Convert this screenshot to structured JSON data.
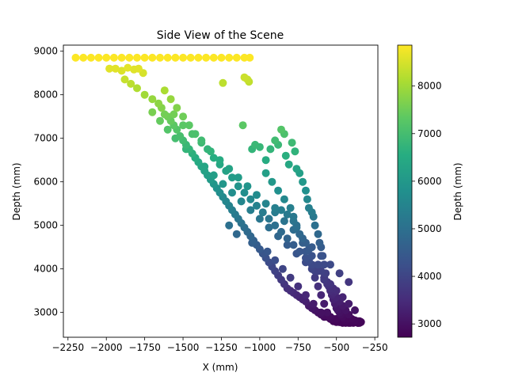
{
  "chart_data": {
    "type": "scatter",
    "title": "Side View of the Scene",
    "xlabel": "X (mm)",
    "ylabel": "Depth (mm)",
    "xlim": [
      -2280,
      -230
    ],
    "ylim": [
      2430,
      9140
    ],
    "xticks": [
      -2250,
      -2000,
      -1750,
      -1500,
      -1250,
      -1000,
      -750,
      -500,
      -250
    ],
    "xtick_labels": [
      "−2250",
      "−2000",
      "−1750",
      "−1500",
      "−1250",
      "−1000",
      "−750",
      "−500",
      "−250"
    ],
    "yticks": [
      3000,
      4000,
      5000,
      6000,
      7000,
      8000,
      9000
    ],
    "ytick_labels": [
      "3000",
      "4000",
      "5000",
      "6000",
      "7000",
      "8000",
      "9000"
    ],
    "grid": false,
    "legend": "none",
    "colormap": "viridis",
    "color_by": "y",
    "colorbar": {
      "label": "Depth (mm)",
      "range": [
        2720,
        8860
      ],
      "ticks": [
        3000,
        4000,
        5000,
        6000,
        7000,
        8000
      ],
      "tick_labels": [
        "3000",
        "4000",
        "5000",
        "6000",
        "7000",
        "8000"
      ]
    },
    "x": [
      -2200,
      -2150,
      -2100,
      -2050,
      -2000,
      -1950,
      -1900,
      -1850,
      -1800,
      -1750,
      -1700,
      -1650,
      -1600,
      -1550,
      -1500,
      -1450,
      -1400,
      -1350,
      -1300,
      -1250,
      -1200,
      -1150,
      -1100,
      -1065,
      -1980,
      -1940,
      -1900,
      -1860,
      -1820,
      -1790,
      -1760,
      -1880,
      -1840,
      -1800,
      -1750,
      -1700,
      -1660,
      -1640,
      -1620,
      -1600,
      -1580,
      -1560,
      -1540,
      -1520,
      -1500,
      -1480,
      -1460,
      -1440,
      -1420,
      -1400,
      -1380,
      -1360,
      -1340,
      -1320,
      -1300,
      -1280,
      -1260,
      -1240,
      -1220,
      -1200,
      -1180,
      -1160,
      -1140,
      -1120,
      -1100,
      -1080,
      -1060,
      -1040,
      -1020,
      -1000,
      -980,
      -960,
      -940,
      -920,
      -900,
      -880,
      -860,
      -840,
      -820,
      -800,
      -780,
      -760,
      -740,
      -720,
      -700,
      -680,
      -660,
      -640,
      -620,
      -600,
      -580,
      -560,
      -540,
      -520,
      -500,
      -480,
      -460,
      -440,
      -420,
      -400,
      -380,
      -360,
      -1620,
      -1580,
      -1540,
      -1500,
      -1460,
      -1420,
      -1380,
      -1340,
      -1300,
      -1260,
      -1220,
      -1180,
      -1140,
      -1100,
      -1060,
      -1020,
      -980,
      -940,
      -900,
      -860,
      -820,
      -780,
      -740,
      -700,
      -660,
      -620,
      -580,
      -540,
      -500,
      -460,
      -420,
      -380,
      -1560,
      -1500,
      -1440,
      -1380,
      -1320,
      -1260,
      -1200,
      -1140,
      -1080,
      -1020,
      -960,
      -900,
      -840,
      -780,
      -720,
      -660,
      -600,
      -540,
      -480,
      -420,
      -1700,
      -1650,
      -1600,
      -1550,
      -1480,
      -1420,
      -1360,
      -1300,
      -1240,
      -1180,
      -1120,
      -1060,
      -1000,
      -940,
      -880,
      -820,
      -760,
      -700,
      -640,
      -580,
      -520,
      -460,
      -1240,
      -1100,
      -1080,
      -1070,
      -1110,
      -1050,
      -1030,
      -1000,
      -960,
      -930,
      -900,
      -880,
      -860,
      -840,
      -830,
      -810,
      -790,
      -770,
      -760,
      -740,
      -720,
      -700,
      -690,
      -680,
      -660,
      -650,
      -640,
      -620,
      -610,
      -600,
      -590,
      -580,
      -570,
      -560,
      -550,
      -540,
      -530,
      -520,
      -510,
      -500,
      -490,
      -480,
      -470,
      -460,
      -450,
      -440,
      -430,
      -420,
      -410,
      -400,
      -380,
      -360,
      -350,
      -960,
      -920,
      -880,
      -840,
      -800,
      -780,
      -760,
      -740,
      -720,
      -700,
      -680,
      -660,
      -640,
      -620,
      -600,
      -580,
      -560,
      -540,
      -520,
      -500,
      -480,
      -460,
      -440,
      -420,
      -400,
      -380,
      -1200,
      -1150,
      -1050,
      -950,
      -900,
      -850,
      -800,
      -750,
      -700,
      -650,
      -600,
      -550,
      -500,
      -450,
      -420,
      -390,
      -360,
      -340,
      -900,
      -860,
      -820,
      -780,
      -760,
      -740,
      -700,
      -680,
      -660,
      -620,
      -600,
      -580,
      -560,
      -540,
      -520,
      -500,
      -480,
      -460,
      -440,
      -420,
      -400,
      -380,
      -360,
      -350
    ],
    "y": [
      8850,
      8850,
      8850,
      8850,
      8850,
      8850,
      8850,
      8850,
      8850,
      8850,
      8850,
      8850,
      8850,
      8850,
      8850,
      8850,
      8850,
      8850,
      8850,
      8850,
      8850,
      8850,
      8850,
      8850,
      8600,
      8600,
      8550,
      8620,
      8580,
      8600,
      8500,
      8350,
      8250,
      8150,
      8000,
      7900,
      7800,
      7700,
      7550,
      7500,
      7400,
      7300,
      7200,
      7050,
      6950,
      6850,
      6750,
      6650,
      6550,
      6450,
      6350,
      6250,
      6150,
      6050,
      5950,
      5850,
      5750,
      5650,
      5550,
      5450,
      5350,
      5250,
      5150,
      5050,
      4950,
      4850,
      4750,
      4650,
      4550,
      4450,
      4350,
      4250,
      4150,
      4050,
      3950,
      3850,
      3750,
      3650,
      3550,
      3500,
      3450,
      3400,
      3350,
      3300,
      3250,
      3150,
      3100,
      3050,
      3000,
      2950,
      2900,
      2900,
      2850,
      2800,
      2780,
      2780,
      2800,
      2820,
      2850,
      2800,
      2780,
      2760,
      8100,
      7900,
      7700,
      7500,
      7300,
      7100,
      6950,
      6750,
      6550,
      6400,
      6250,
      6100,
      5900,
      5750,
      5600,
      5450,
      5300,
      5150,
      5000,
      4850,
      4700,
      4550,
      4400,
      4250,
      4100,
      3950,
      3800,
      3650,
      3500,
      3350,
      3200,
      3050,
      7550,
      7300,
      7100,
      6900,
      6700,
      6500,
      6300,
      6100,
      5900,
      5700,
      5500,
      5300,
      5100,
      4900,
      4700,
      4500,
      4300,
      4100,
      3900,
      3700,
      7600,
      7400,
      7200,
      7000,
      6750,
      6550,
      6350,
      6150,
      5950,
      5750,
      5550,
      5350,
      5150,
      4950,
      4750,
      4550,
      4350,
      4150,
      3950,
      3750,
      3550,
      3350,
      8270,
      8400,
      8350,
      8300,
      7300,
      6750,
      6850,
      6800,
      6500,
      6750,
      6950,
      6850,
      7200,
      7100,
      6600,
      6400,
      6900,
      6700,
      6300,
      6200,
      6000,
      5800,
      5600,
      5400,
      5300,
      5200,
      5000,
      4800,
      4600,
      4500,
      4300,
      4100,
      3900,
      3700,
      3600,
      3500,
      3400,
      3300,
      3200,
      3100,
      3050,
      3000,
      2950,
      2900,
      2850,
      2800,
      2780,
      2760,
      2760,
      2780,
      2800,
      2800,
      2800,
      6200,
      6000,
      5800,
      5600,
      5400,
      5200,
      5000,
      4800,
      4600,
      4400,
      4200,
      4000,
      3800,
      3600,
      3400,
      3200,
      3000,
      2900,
      2850,
      2800,
      2780,
      2760,
      2760,
      2780,
      2800,
      2820,
      5000,
      4800,
      4600,
      4400,
      4200,
      4000,
      3800,
      3600,
      3400,
      3200,
      3000,
      2900,
      2850,
      2800,
      2780,
      2760,
      2760,
      2780,
      5400,
      5350,
      5250,
      5100,
      4950,
      4800,
      4600,
      4450,
      4300,
      4100,
      3950,
      3800,
      3650,
      3550,
      3450,
      3350,
      3250,
      3150,
      3050,
      2950,
      2850,
      2800,
      2780,
      2760
    ]
  }
}
